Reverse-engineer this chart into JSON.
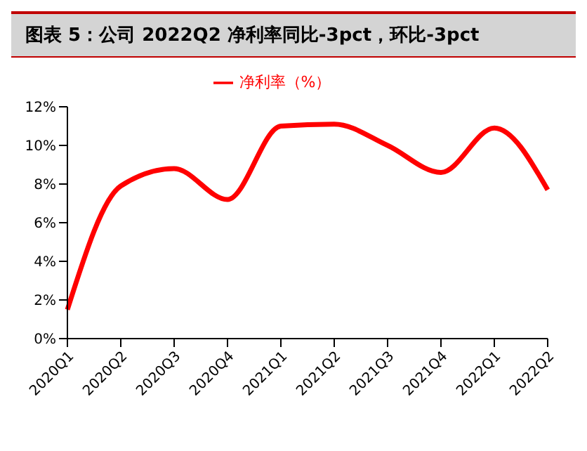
{
  "chart_data": {
    "type": "line",
    "title": "图表 5：公司 2022Q2 净利率同比-3pct，环比-3pct",
    "categories": [
      "2020Q1",
      "2020Q2",
      "2020Q3",
      "2020Q4",
      "2021Q1",
      "2021Q2",
      "2021Q3",
      "2021Q4",
      "2022Q1",
      "2022Q2"
    ],
    "series": [
      {
        "name": "净利率（%）",
        "color": "#ff0000",
        "values": [
          1.5,
          7.9,
          8.8,
          7.2,
          11.0,
          11.1,
          10.0,
          8.6,
          10.9,
          7.7
        ]
      }
    ],
    "ylim": [
      0,
      12
    ],
    "yticks": [
      {
        "value": 0,
        "label": "0%"
      },
      {
        "value": 2,
        "label": "2%"
      },
      {
        "value": 4,
        "label": "4%"
      },
      {
        "value": 6,
        "label": "6%"
      },
      {
        "value": 8,
        "label": "8%"
      },
      {
        "value": 10,
        "label": "10%"
      },
      {
        "value": 12,
        "label": "12%"
      }
    ],
    "grid": false,
    "legend": "top",
    "marker": "none",
    "line_style": "solid"
  }
}
